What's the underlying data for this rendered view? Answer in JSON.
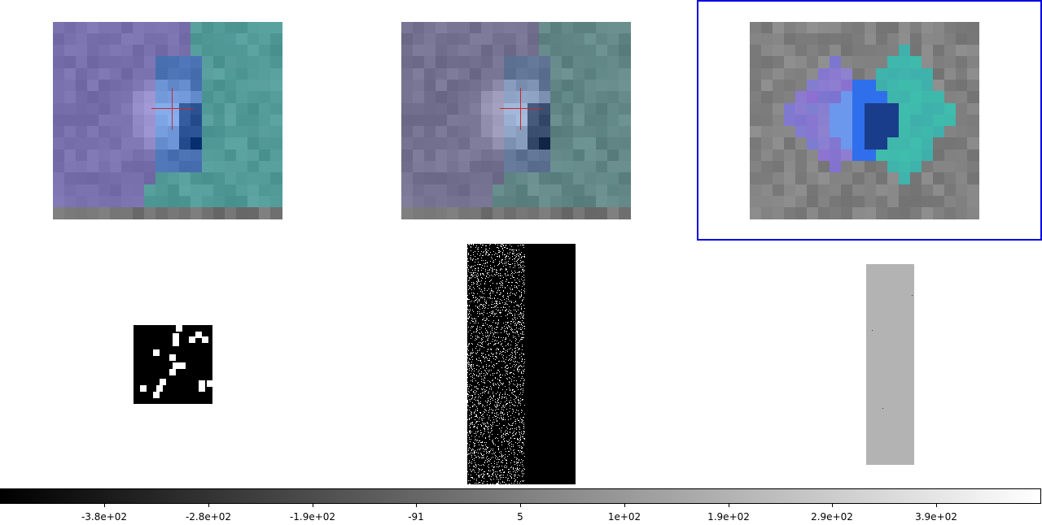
{
  "panels": [
    {
      "id": "cutout-overlay",
      "selected": false,
      "style": "overlay-strong"
    },
    {
      "id": "cutout-overlay-faded",
      "selected": false,
      "style": "overlay-faded"
    },
    {
      "id": "segmentation-map",
      "selected": true,
      "style": "segmentation"
    }
  ],
  "thumbnails": [
    "mask",
    "noise-strip",
    "flat-gray"
  ],
  "colors": {
    "selection_border": "#0000e0",
    "crosshair": "#c8282a",
    "region_purple": "#7b6fd0",
    "region_blue": "#2f6fd8",
    "region_teal": "#3fb3b0"
  },
  "colorbar": {
    "colormap": "gray",
    "tick_labels": [
      "-3.8e+02",
      "-2.8e+02",
      "-1.9e+02",
      "-91",
      "5",
      "1e+02",
      "1.9e+02",
      "2.9e+02",
      "3.9e+02"
    ]
  }
}
